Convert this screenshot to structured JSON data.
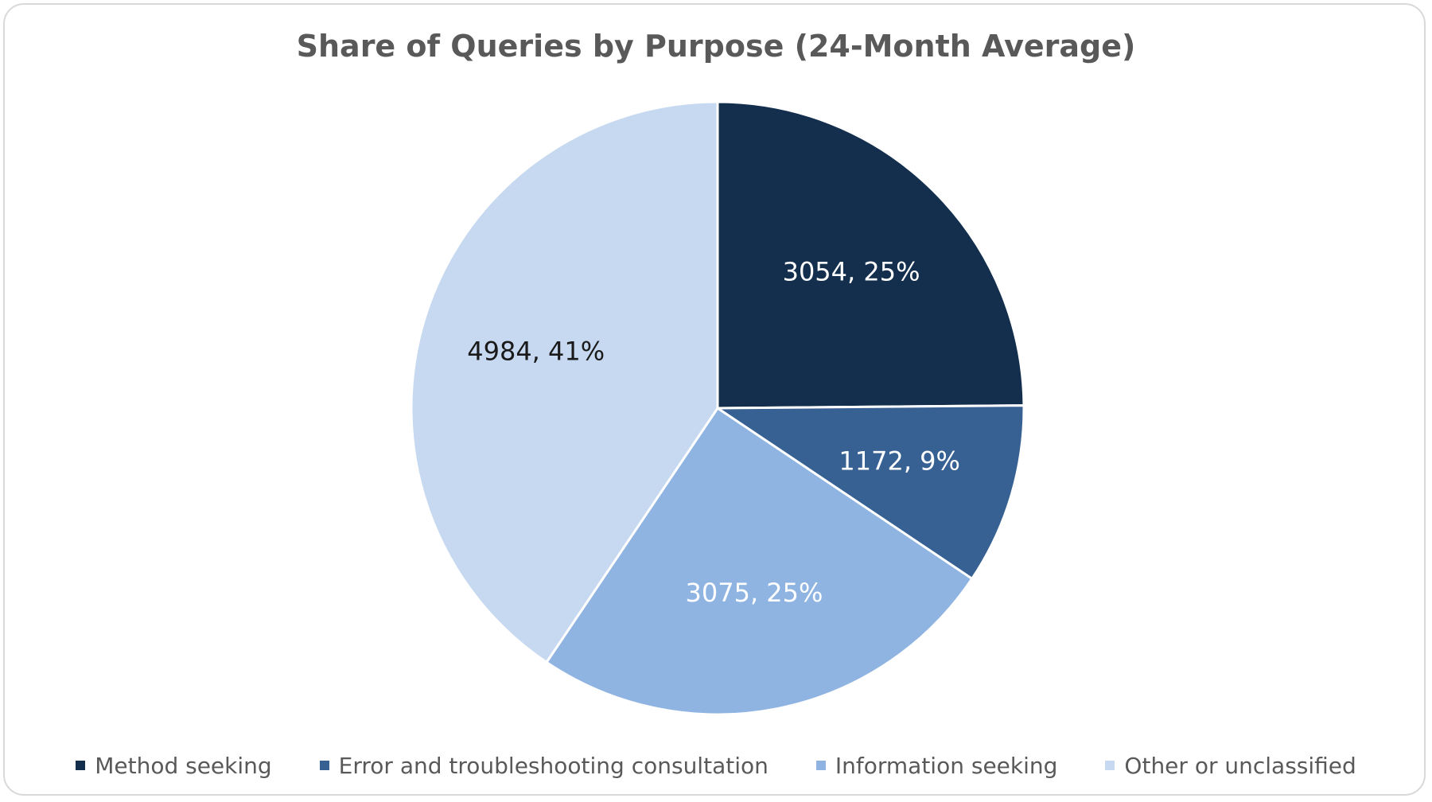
{
  "chart_data": {
    "type": "pie",
    "title": "Share of Queries by Purpose (24-Month Average)",
    "slices": [
      {
        "name": "Method seeking",
        "value": 3054,
        "percent": "25%",
        "label": "3054, 25%",
        "color": "#132f4d",
        "label_color": "#ffffff"
      },
      {
        "name": "Error and troubleshooting consultation",
        "value": 1172,
        "percent": "9%",
        "label": "1172, 9%",
        "color": "#386193",
        "label_color": "#ffffff"
      },
      {
        "name": "Information seeking",
        "value": 3075,
        "percent": "25%",
        "label": "3075, 25%",
        "color": "#8fb4e2",
        "label_color": "#ffffff"
      },
      {
        "name": "Other or unclassified",
        "value": 4984,
        "percent": "41%",
        "label": "4984, 41%",
        "color": "#c6d9f0",
        "label_color": "#1a1a1a"
      }
    ],
    "legend_position": "bottom",
    "start_angle": "12 o'clock",
    "direction": "clockwise"
  }
}
